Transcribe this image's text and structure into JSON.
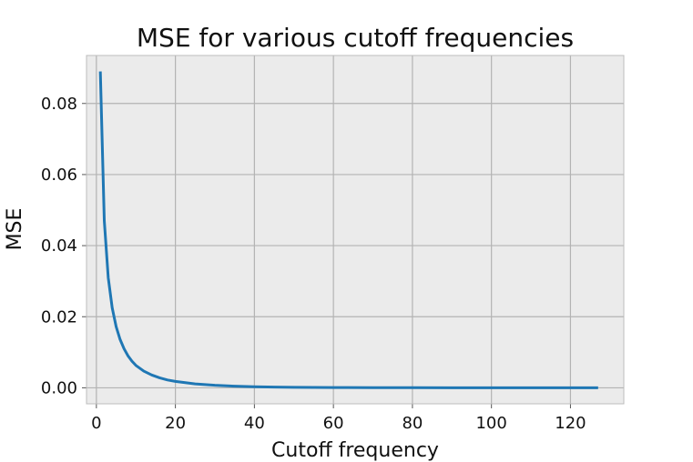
{
  "chart_data": {
    "type": "line",
    "title": "MSE for various cutoff frequencies",
    "xlabel": "Cutoff frequency",
    "ylabel": "MSE",
    "xlim": [
      -2.5,
      133.5
    ],
    "ylim": [
      -0.0045,
      0.0935
    ],
    "xticks": [
      0,
      20,
      40,
      60,
      80,
      100,
      120
    ],
    "xtick_labels": [
      "0",
      "20",
      "40",
      "60",
      "80",
      "100",
      "120"
    ],
    "yticks": [
      0.0,
      0.02,
      0.04,
      0.06,
      0.08
    ],
    "ytick_labels": [
      "0.00",
      "0.02",
      "0.04",
      "0.06",
      "0.08"
    ],
    "grid": true,
    "colors": {
      "line": "#1f77b4",
      "plot_bg": "#ebebeb",
      "grid": "#b3b3b3"
    },
    "series": [
      {
        "x": [
          1,
          2,
          3,
          4,
          5,
          6,
          7,
          8,
          9,
          10,
          12,
          14,
          16,
          18,
          20,
          25,
          30,
          35,
          40,
          45,
          50,
          60,
          70,
          80,
          90,
          100,
          110,
          120,
          127
        ],
        "y": [
          0.089,
          0.047,
          0.031,
          0.0225,
          0.0172,
          0.0136,
          0.011,
          0.009,
          0.0075,
          0.0063,
          0.0047,
          0.0036,
          0.0028,
          0.0022,
          0.0018,
          0.0011,
          0.0007,
          0.00045,
          0.0003,
          0.0002,
          0.00014,
          8e-05,
          5e-05,
          3e-05,
          2e-05,
          1e-05,
          1e-05,
          0.0,
          0.0
        ]
      }
    ]
  }
}
